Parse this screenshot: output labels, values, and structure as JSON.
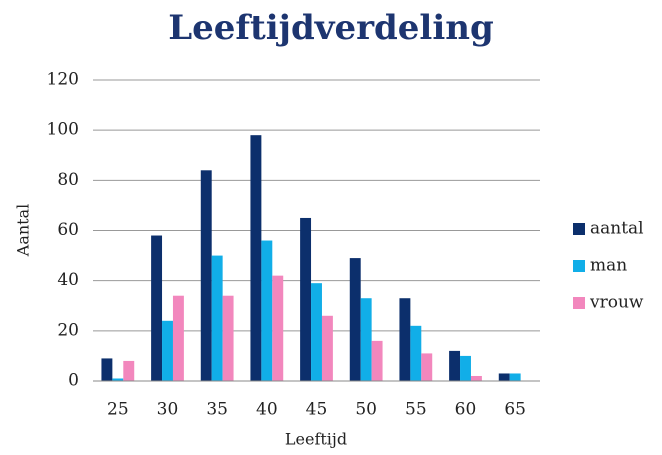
{
  "chart_data": {
    "type": "bar",
    "title": "Leeftijdverdeling",
    "x_label": "Leeftijd",
    "y_label": "Aantal",
    "categories": [
      "25",
      "30",
      "35",
      "40",
      "45",
      "50",
      "55",
      "60",
      "65"
    ],
    "series": [
      {
        "name": "aantal",
        "color": "#0c2f6c",
        "values": [
          9,
          58,
          84,
          98,
          65,
          49,
          33,
          12,
          3
        ]
      },
      {
        "name": "man",
        "color": "#11aee8",
        "values": [
          1,
          24,
          50,
          56,
          39,
          33,
          22,
          10,
          3
        ]
      },
      {
        "name": "vrouw",
        "color": "#f287bd",
        "values": [
          8,
          34,
          34,
          42,
          26,
          16,
          11,
          2,
          0
        ]
      }
    ],
    "ylim": [
      0,
      120
    ],
    "yticks": [
      0,
      20,
      40,
      60,
      80,
      100,
      120
    ],
    "grid": true,
    "legend": "right"
  }
}
